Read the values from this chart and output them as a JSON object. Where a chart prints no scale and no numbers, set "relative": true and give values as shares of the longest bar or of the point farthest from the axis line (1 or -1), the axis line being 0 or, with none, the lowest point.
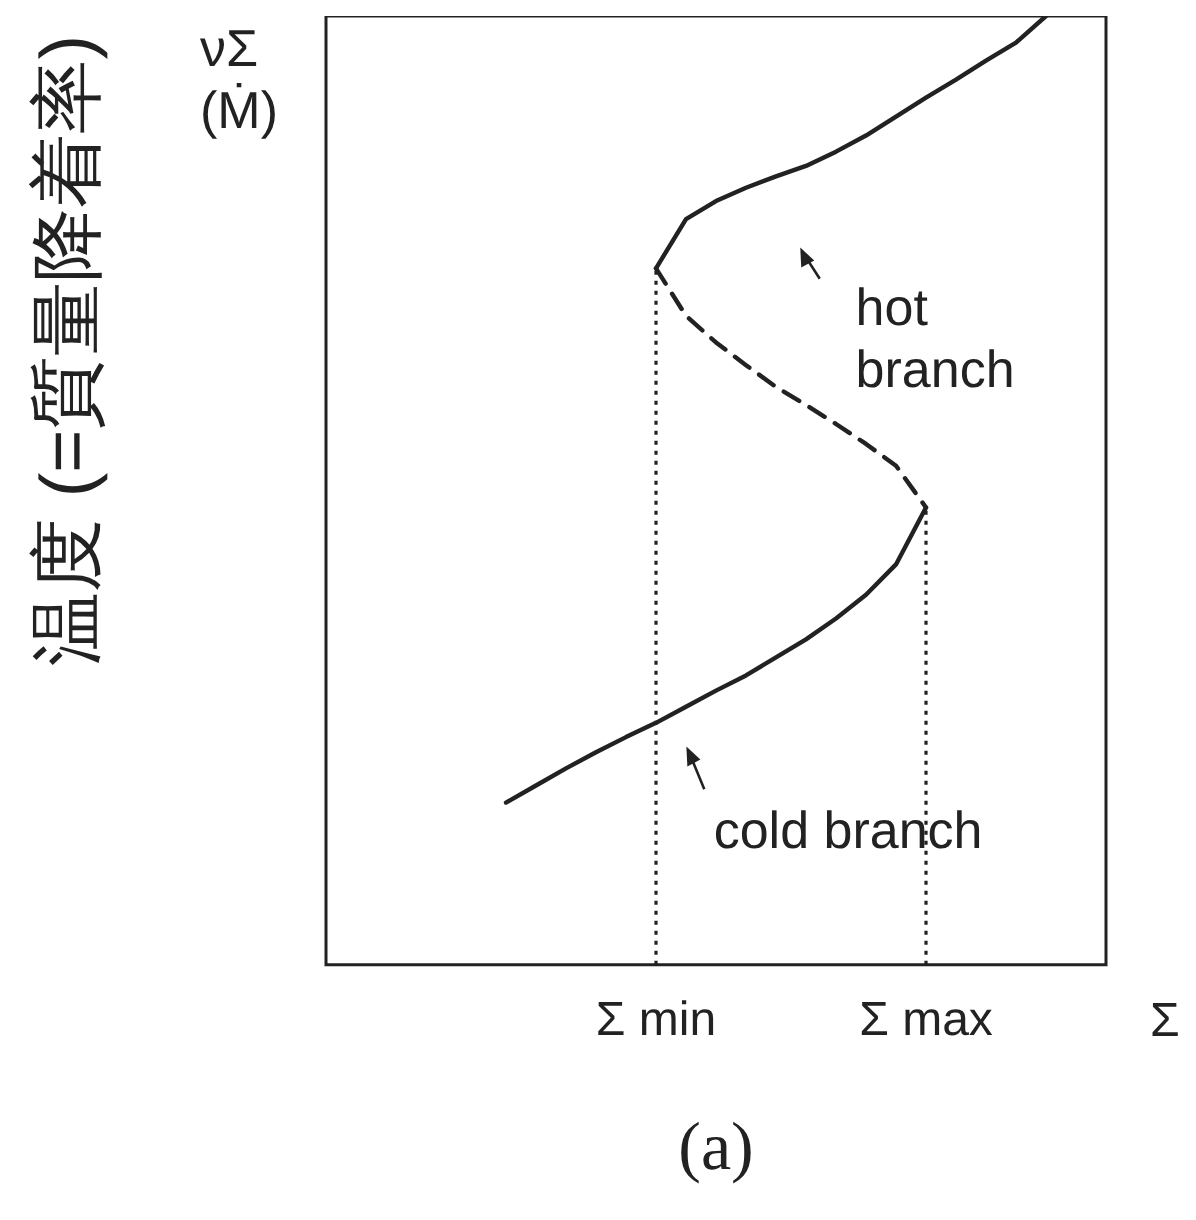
{
  "chart_data": {
    "type": "line",
    "title": "(a)",
    "xlabel": "Σ",
    "ylabel": "温度 (=質量降着率)",
    "relative": true,
    "grid": false,
    "legend": false,
    "tick_labels": "x",
    "marker": "none",
    "categories": [
      null,
      null,
      null,
      null,
      null,
      null,
      null,
      null,
      null,
      null,
      null,
      "Σ min",
      null,
      null,
      null,
      null,
      null,
      null,
      null,
      null,
      "Σ max",
      null,
      null,
      null,
      null,
      null,
      null
    ],
    "series": [
      {
        "color": "#222222",
        "line_style": "solid",
        "values": [
          null,
          null,
          null,
          null,
          null,
          null,
          null,
          null,
          null,
          null,
          null,
          0.734,
          0.786,
          0.805,
          0.819,
          0.831,
          0.842,
          0.857,
          0.874,
          0.894,
          0.914,
          0.933,
          0.953,
          0.972,
          1,
          null,
          null
        ]
      },
      {
        "color": "#222222",
        "line_style": "dashed",
        "values": [
          null,
          null,
          null,
          null,
          null,
          null,
          null,
          null,
          null,
          null,
          null,
          0.734,
          0.684,
          0.656,
          0.632,
          0.609,
          0.59,
          0.57,
          0.549,
          0.526,
          0.482,
          null,
          null,
          null,
          null,
          null,
          null
        ]
      },
      {
        "color": "#222222",
        "line_style": "solid",
        "values": [
          null,
          null,
          null,
          null,
          null,
          null,
          0.171,
          0.189,
          0.207,
          0.224,
          0.24,
          0.255,
          0.272,
          0.289,
          0.305,
          0.324,
          0.343,
          0.365,
          0.39,
          0.422,
          0.482,
          null,
          null,
          null,
          null,
          null,
          null
        ]
      }
    ],
    "ref_lines": [
      {
        "axis": "x",
        "value": "Σ min",
        "line_style": "dotted",
        "color": "#222222"
      },
      {
        "axis": "x",
        "value": "Σ max",
        "line_style": "dotted",
        "color": "#222222"
      }
    ],
    "annotations": [
      "νΣ (Ṁ)",
      "hot branch",
      "cold branch"
    ]
  }
}
